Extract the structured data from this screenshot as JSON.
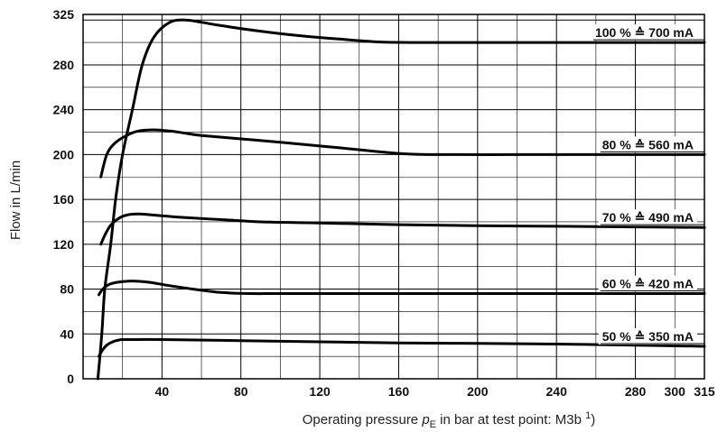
{
  "chart_data": {
    "type": "line",
    "xlabel": {
      "prefix": "Operating pressure ",
      "symbol": "p",
      "subscript": "E",
      "suffix": " in bar at test point: M3b ",
      "footnote": "1",
      "close": ")"
    },
    "ylabel": "Flow in L/min",
    "xlim": [
      0,
      315
    ],
    "ylim": [
      0,
      325
    ],
    "x_ticks": [
      40,
      80,
      120,
      160,
      200,
      240,
      280,
      300,
      315
    ],
    "y_ticks": [
      0,
      40,
      80,
      120,
      160,
      200,
      240,
      280,
      325
    ],
    "grid": true,
    "series": [
      {
        "name": "100 % ≙ 700 mA",
        "x": [
          7.5,
          9.5,
          11,
          14,
          16.5,
          20,
          25,
          30,
          36,
          44,
          52,
          60,
          70,
          90,
          110,
          130,
          150,
          165,
          180,
          220,
          260,
          300,
          315
        ],
        "y": [
          0,
          40,
          80,
          120,
          160,
          200,
          240,
          280,
          305,
          318,
          320,
          318,
          315,
          310,
          306,
          303,
          300.5,
          300,
          300,
          300,
          300,
          300,
          300
        ]
      },
      {
        "name": "80 % ≙ 560 mA",
        "x": [
          9,
          12,
          16,
          22,
          28,
          36,
          44,
          52,
          60,
          80,
          100,
          130,
          160,
          180,
          220,
          260,
          315
        ],
        "y": [
          180,
          200,
          210,
          217,
          221,
          222,
          221,
          219,
          217,
          214,
          211,
          206,
          201,
          200,
          200,
          200,
          200
        ]
      },
      {
        "name": "70 % ≙ 490 mA",
        "x": [
          9,
          11,
          14,
          18,
          22,
          28,
          36,
          50,
          70,
          90,
          120,
          160,
          200,
          240,
          280,
          315
        ],
        "y": [
          120,
          128,
          137,
          143,
          146,
          147,
          146,
          144,
          142,
          140,
          139,
          137.5,
          136.5,
          136,
          135.5,
          135
        ]
      },
      {
        "name": "60 % ≙ 420 mA",
        "x": [
          8,
          10,
          13,
          17,
          22,
          28,
          34,
          44,
          56,
          70,
          85,
          100,
          140,
          200,
          260,
          315
        ],
        "y": [
          75,
          80,
          84,
          86,
          87,
          87,
          86,
          83,
          80,
          77,
          76,
          76,
          76,
          76,
          76,
          76
        ]
      },
      {
        "name": "50 % ≙ 350 mA",
        "x": [
          8,
          10,
          12,
          15,
          18,
          20,
          25,
          40,
          80,
          120,
          160,
          200,
          240,
          280,
          315
        ],
        "y": [
          20,
          26,
          30,
          33,
          34.5,
          35,
          35,
          35,
          34,
          33,
          32,
          31.5,
          31,
          30,
          29
        ]
      }
    ],
    "labels": [
      {
        "pct": "100 %",
        "ma": "700 mA"
      },
      {
        "pct": "80 %",
        "ma": "560 mA"
      },
      {
        "pct": "70 %",
        "ma": "490 mA"
      },
      {
        "pct": "60 %",
        "ma": "420 mA"
      },
      {
        "pct": "50 %",
        "ma": "350 mA"
      }
    ]
  }
}
